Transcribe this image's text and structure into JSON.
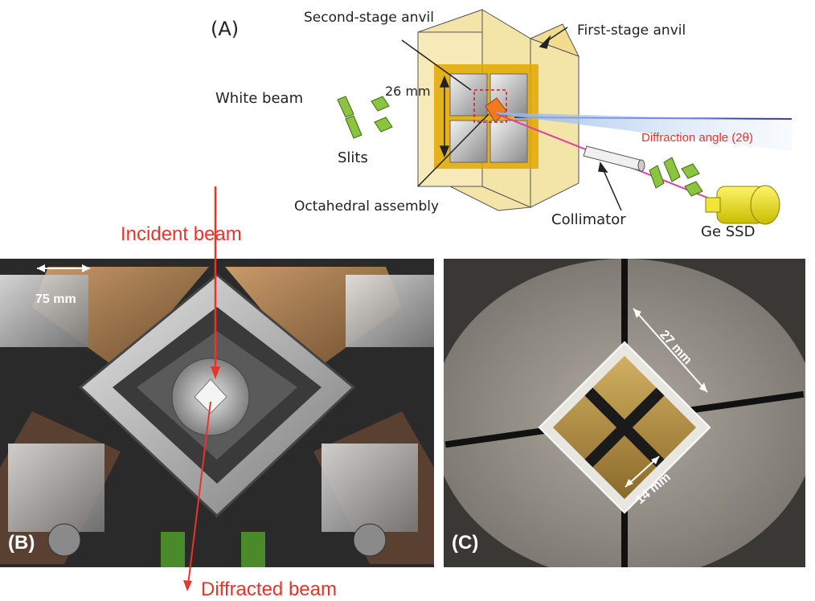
{
  "panel_a": {
    "letter": "(A)",
    "second_stage_anvil": "Second-stage anvil",
    "first_stage_anvil": "First-stage anvil",
    "white_beam": "White beam",
    "size_26": "26 mm",
    "slits": "Slits",
    "octahedral_assembly": "Octahedral assembly",
    "collimator": "Collimator",
    "diffraction_angle": "Diffraction angle (2θ)",
    "ge_ssd": "Ge SSD"
  },
  "panel_b": {
    "letter": "(B)",
    "incident_beam": "Incident beam",
    "diffracted_beam": "Diffracted beam",
    "size_75": "75 mm"
  },
  "panel_c": {
    "letter": "(C)",
    "size_27": "27 mm",
    "size_14": "14 mm"
  },
  "colors": {
    "label_red": "#e8342a",
    "beam_blue": "#3a3ad0",
    "slit_green": "#8bc53f",
    "detector_yellow": "#e6dd00",
    "anvil_frame": "#f3e4a8"
  }
}
